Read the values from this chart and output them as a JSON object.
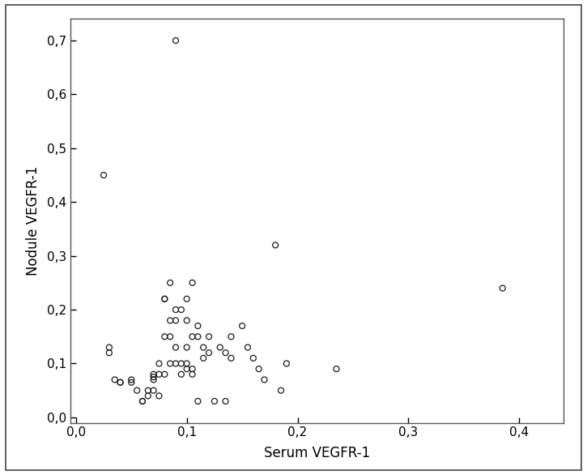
{
  "x": [
    0.025,
    0.03,
    0.03,
    0.035,
    0.04,
    0.04,
    0.05,
    0.05,
    0.055,
    0.06,
    0.06,
    0.065,
    0.065,
    0.07,
    0.07,
    0.07,
    0.07,
    0.075,
    0.075,
    0.075,
    0.08,
    0.08,
    0.08,
    0.08,
    0.085,
    0.085,
    0.085,
    0.085,
    0.09,
    0.09,
    0.09,
    0.09,
    0.09,
    0.095,
    0.095,
    0.095,
    0.1,
    0.1,
    0.1,
    0.1,
    0.1,
    0.105,
    0.105,
    0.105,
    0.105,
    0.11,
    0.11,
    0.11,
    0.115,
    0.115,
    0.12,
    0.12,
    0.125,
    0.13,
    0.135,
    0.135,
    0.14,
    0.14,
    0.15,
    0.155,
    0.16,
    0.165,
    0.17,
    0.18,
    0.185,
    0.19,
    0.235,
    0.385
  ],
  "y": [
    0.45,
    0.13,
    0.12,
    0.07,
    0.065,
    0.065,
    0.07,
    0.065,
    0.05,
    0.03,
    0.03,
    0.05,
    0.04,
    0.08,
    0.075,
    0.07,
    0.05,
    0.1,
    0.08,
    0.04,
    0.22,
    0.22,
    0.15,
    0.08,
    0.25,
    0.18,
    0.15,
    0.1,
    0.7,
    0.2,
    0.18,
    0.13,
    0.1,
    0.2,
    0.1,
    0.08,
    0.22,
    0.18,
    0.13,
    0.1,
    0.09,
    0.25,
    0.15,
    0.09,
    0.08,
    0.17,
    0.15,
    0.03,
    0.13,
    0.11,
    0.15,
    0.12,
    0.03,
    0.13,
    0.12,
    0.03,
    0.15,
    0.11,
    0.17,
    0.13,
    0.11,
    0.09,
    0.07,
    0.32,
    0.05,
    0.1,
    0.09,
    0.24
  ],
  "xlabel": "Serum VEGFR-1",
  "ylabel": "Nodule VEGFR-1",
  "xlim": [
    -0.005,
    0.44
  ],
  "ylim": [
    -0.01,
    0.74
  ],
  "xticks": [
    0.0,
    0.1,
    0.2,
    0.3,
    0.4
  ],
  "yticks": [
    0.0,
    0.1,
    0.2,
    0.3,
    0.4,
    0.5,
    0.6,
    0.7
  ],
  "xtick_labels": [
    "0,0",
    "0,1",
    "0,2",
    "0,3",
    "0,4"
  ],
  "ytick_labels": [
    "0,0",
    "0,1",
    "0,2",
    "0,3",
    "0,4",
    "0,5",
    "0,6",
    "0,7"
  ],
  "marker_color": "none",
  "marker_edge_color": "#1a1a1a",
  "marker_size": 6,
  "background_color": "#ffffff",
  "plot_bg_color": "#ffffff",
  "outer_border_color": "#444444",
  "inner_border_color": "#555555"
}
